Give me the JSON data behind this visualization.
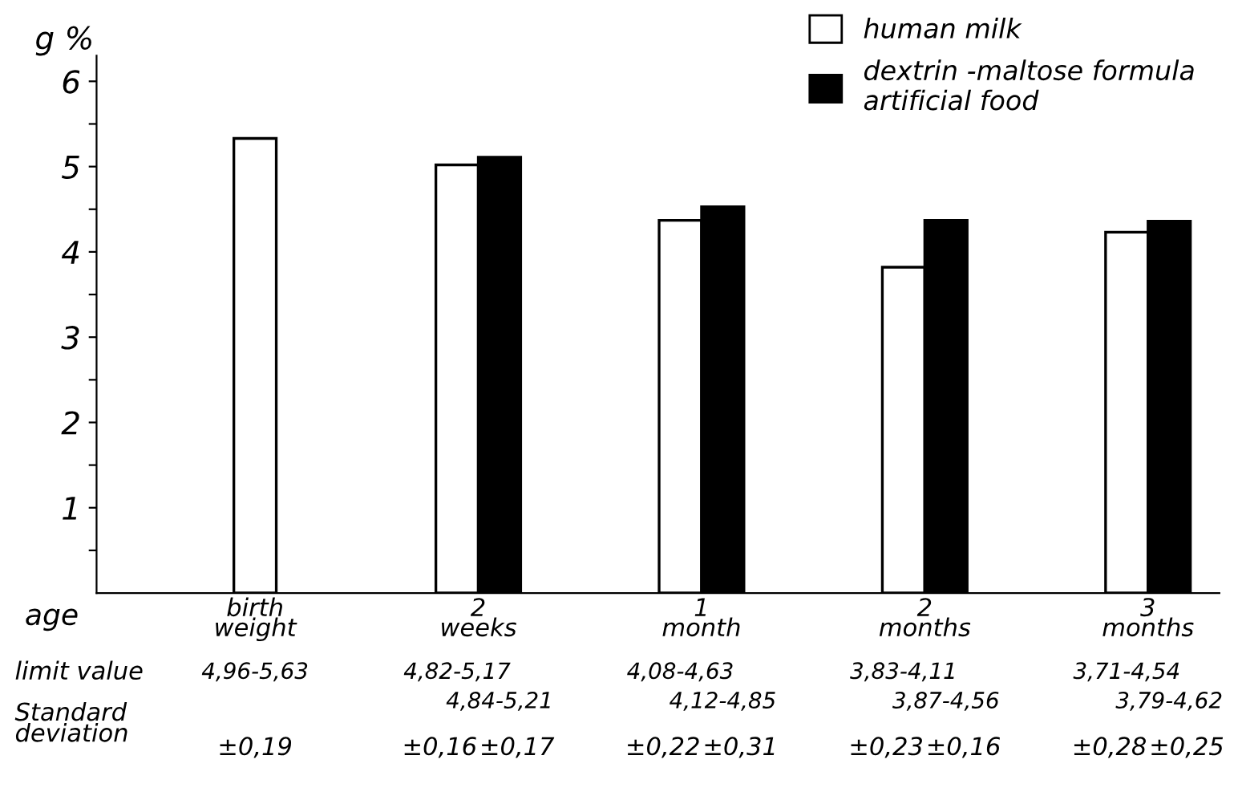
{
  "chart_data": {
    "type": "bar",
    "ylabel": "g %",
    "xlabel": "age",
    "categories": [
      "birth\nweight",
      "2\nweeks",
      "1\nmonth",
      "2\nmonths",
      "3\nmonths"
    ],
    "series": [
      {
        "name": "human milk",
        "color": "#ffffff",
        "values": [
          5.33,
          5.02,
          4.37,
          3.82,
          4.23
        ]
      },
      {
        "name": "dextrin -maltose formula\nartificial food",
        "color": "#000000",
        "values": [
          null,
          5.11,
          4.53,
          4.37,
          4.36
        ]
      }
    ],
    "ylim": [
      0,
      6.3
    ],
    "yticks": [
      {
        "value": 0.5,
        "label": null
      },
      1,
      {
        "value": 1.5,
        "label": null
      },
      2,
      {
        "value": 2.5,
        "label": null
      },
      3,
      {
        "value": 3.5,
        "label": null
      },
      4,
      {
        "value": 4.5,
        "label": null
      },
      5,
      {
        "value": 5.5,
        "label": null
      },
      6
    ],
    "grid": false,
    "legend": "top right",
    "annotations": [
      "limit value",
      "Standard\ndeviation",
      "4,96-5,63",
      "4,82-5,17",
      "4,84-5,21",
      "4,08-4,63",
      "4,12-4,85",
      "3,83-4,11",
      "3,87-4,56",
      "3,71-4,54",
      "3,79-4,62",
      "±0,19",
      "±0,16",
      "±0,17",
      "±0,22",
      "±0,31",
      "±0,23",
      "±0,16",
      "±0,28",
      "±0,25"
    ]
  }
}
